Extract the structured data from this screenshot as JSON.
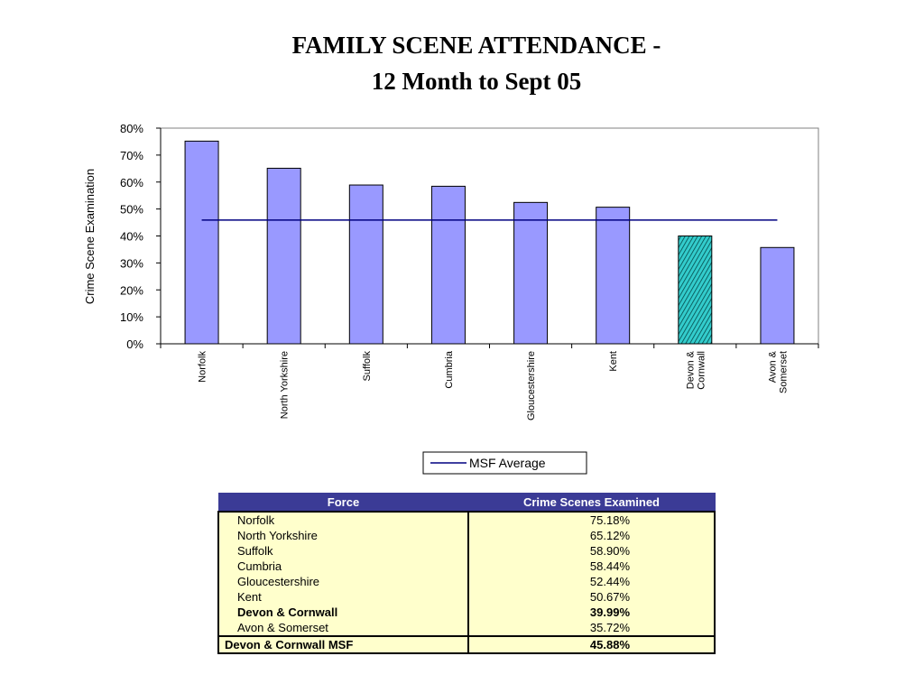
{
  "title": {
    "line1": "FAMILY SCENE ATTENDANCE -",
    "line2": "12 Month to Sept 05"
  },
  "chart_data": {
    "type": "bar",
    "ylabel": "Crime Scene Examination",
    "xlabel": "",
    "ylim": [
      0,
      0.8
    ],
    "yticks": [
      "0%",
      "10%",
      "20%",
      "30%",
      "40%",
      "50%",
      "60%",
      "70%",
      "80%"
    ],
    "grid": false,
    "categories": [
      "Norfolk",
      "North Yorkshire",
      "Suffolk",
      "Cumbria",
      "Gloucestershire",
      "Kent",
      "Devon & Cornwall",
      "Avon & Somerset"
    ],
    "tick_labels": [
      [
        "Norfolk"
      ],
      [
        "North Yorkshire"
      ],
      [
        "Suffolk"
      ],
      [
        "Cumbria"
      ],
      [
        "Gloucestershire"
      ],
      [
        "Kent"
      ],
      [
        "Devon &",
        "Cornwall"
      ],
      [
        "Avon &",
        "Somerset"
      ]
    ],
    "values": [
      0.7518,
      0.6512,
      0.589,
      0.5844,
      0.5244,
      0.5067,
      0.3999,
      0.3572
    ],
    "highlight_index": 6,
    "bar_color": "#9999ff",
    "highlight_color": "#33cccc",
    "reference_line": {
      "name": "MSF Average",
      "value": 0.4588,
      "color": "#000080"
    },
    "legend": {
      "position": "bottom",
      "entries": [
        "MSF Average"
      ]
    }
  },
  "table": {
    "headers": [
      "Force",
      "Crime Scenes Examined"
    ],
    "rows": [
      {
        "force": "Norfolk",
        "value": "75.18%",
        "bold": false
      },
      {
        "force": "North Yorkshire",
        "value": "65.12%",
        "bold": false
      },
      {
        "force": "Suffolk",
        "value": "58.90%",
        "bold": false
      },
      {
        "force": "Cumbria",
        "value": "58.44%",
        "bold": false
      },
      {
        "force": "Gloucestershire",
        "value": "52.44%",
        "bold": false
      },
      {
        "force": "Kent",
        "value": "50.67%",
        "bold": false
      },
      {
        "force": "Devon & Cornwall",
        "value": "39.99%",
        "bold": true
      },
      {
        "force": "Avon & Somerset",
        "value": "35.72%",
        "bold": false
      }
    ],
    "total": {
      "force": "Devon & Cornwall MSF",
      "value": "45.88%"
    },
    "header_color": "#3b3b96",
    "cell_color": "#ffffcc"
  }
}
